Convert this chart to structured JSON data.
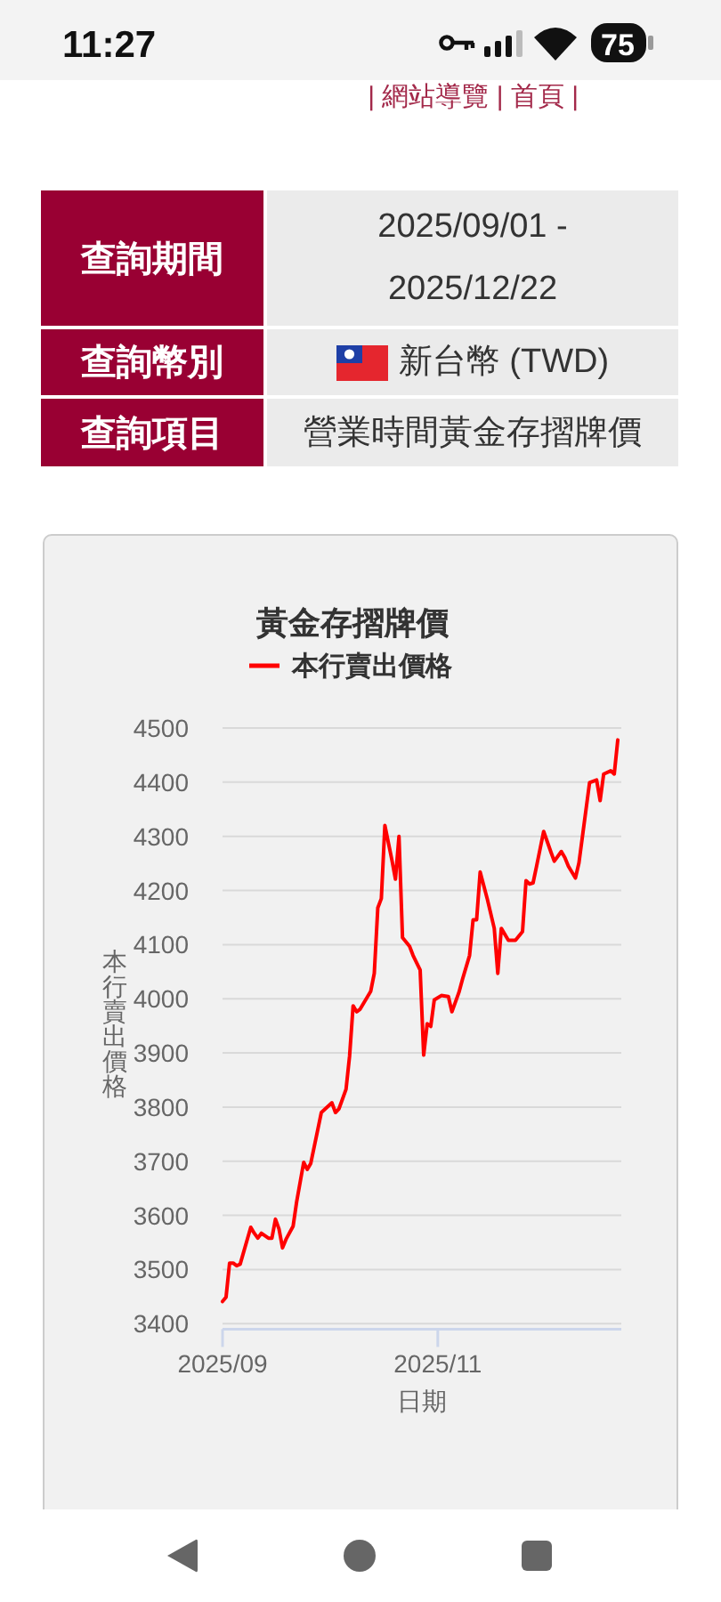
{
  "chart_data": {
    "type": "line",
    "title": "黃金存摺牌價",
    "xlabel": "日期",
    "ylabel": "本行賣出價格",
    "legend": "top",
    "grid": "y",
    "line_style": "solid",
    "xlim": [
      "2025-09-01",
      "2025-12-23"
    ],
    "ylim": [
      3390,
      4500
    ],
    "xticks": [
      {
        "value": "2025-09-01",
        "label": "2025/09"
      },
      {
        "value": "2025-11-01",
        "label": "2025/11"
      }
    ],
    "yticks": [
      3400,
      3500,
      3600,
      3700,
      3800,
      3900,
      4000,
      4100,
      4200,
      4300,
      4400,
      4500
    ],
    "series": [
      {
        "name": "本行賣出價格",
        "color": "#ff0000",
        "x": [
          "2025-09-01",
          "2025-09-02",
          "2025-09-03",
          "2025-09-04",
          "2025-09-05",
          "2025-09-06",
          "2025-09-09",
          "2025-09-10",
          "2025-09-11",
          "2025-09-12",
          "2025-09-14",
          "2025-09-15",
          "2025-09-16",
          "2025-09-17",
          "2025-09-18",
          "2025-09-19",
          "2025-09-21",
          "2025-09-22",
          "2025-09-24",
          "2025-09-25",
          "2025-09-26",
          "2025-09-29",
          "2025-10-02",
          "2025-10-03",
          "2025-10-04",
          "2025-10-06",
          "2025-10-07",
          "2025-10-08",
          "2025-10-09",
          "2025-10-10",
          "2025-10-13",
          "2025-10-14",
          "2025-10-15",
          "2025-10-16",
          "2025-10-17",
          "2025-10-19",
          "2025-10-20",
          "2025-10-21",
          "2025-10-22",
          "2025-10-24",
          "2025-10-25",
          "2025-10-27",
          "2025-10-28",
          "2025-10-29",
          "2025-10-30",
          "2025-10-31",
          "2025-11-02",
          "2025-11-04",
          "2025-11-05",
          "2025-11-07",
          "2025-11-08",
          "2025-11-10",
          "2025-11-11",
          "2025-11-12",
          "2025-11-13",
          "2025-11-15",
          "2025-11-17",
          "2025-11-18",
          "2025-11-19",
          "2025-11-21",
          "2025-11-23",
          "2025-11-25",
          "2025-11-26",
          "2025-11-27",
          "2025-11-28",
          "2025-11-29",
          "2025-12-01",
          "2025-12-03",
          "2025-12-04",
          "2025-12-06",
          "2025-12-07",
          "2025-12-08",
          "2025-12-10",
          "2025-12-11",
          "2025-12-14",
          "2025-12-16",
          "2025-12-17",
          "2025-12-18",
          "2025-12-20",
          "2025-12-21",
          "2025-12-22"
        ],
        "values": [
          3441,
          3449,
          3512,
          3512,
          3507,
          3510,
          3578,
          3567,
          3558,
          3567,
          3558,
          3558,
          3593,
          3575,
          3540,
          3556,
          3580,
          3625,
          3698,
          3685,
          3696,
          3790,
          3808,
          3790,
          3797,
          3833,
          3894,
          3987,
          3976,
          3981,
          4014,
          4047,
          4168,
          4185,
          4320,
          4256,
          4221,
          4300,
          4113,
          4097,
          4080,
          4053,
          3896,
          3954,
          3949,
          3998,
          4006,
          4004,
          3976,
          4012,
          4036,
          4080,
          4146,
          4146,
          4234,
          4185,
          4130,
          4047,
          4130,
          4108,
          4108,
          4124,
          4218,
          4212,
          4214,
          4245,
          4309,
          4272,
          4254,
          4272,
          4261,
          4245,
          4223,
          4251,
          4399,
          4404,
          4366,
          4415,
          4421,
          4415,
          4478
        ]
      }
    ],
    "annotations": [
      "11:27",
      "75",
      "| 網站導覽 | 首頁 |",
      "查詢期間",
      "2025/09/01 - 2025/12/22",
      "查詢幣別",
      "新台幣 (TWD)",
      "查詢項目",
      "營業時間黃金存摺牌價"
    ]
  }
}
